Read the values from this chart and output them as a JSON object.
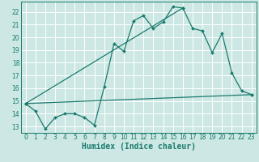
{
  "xlabel": "Humidex (Indice chaleur)",
  "bg_color": "#cde8e4",
  "grid_color": "#ffffff",
  "line_color": "#1a7a6e",
  "xlim": [
    -0.5,
    23.5
  ],
  "ylim": [
    12.5,
    22.8
  ],
  "yticks": [
    13,
    14,
    15,
    16,
    17,
    18,
    19,
    20,
    21,
    22
  ],
  "xticks": [
    0,
    1,
    2,
    3,
    4,
    5,
    6,
    7,
    8,
    9,
    10,
    11,
    12,
    13,
    14,
    15,
    16,
    17,
    18,
    19,
    20,
    21,
    22,
    23
  ],
  "series1_x": [
    0,
    1,
    2,
    3,
    4,
    5,
    6,
    7,
    8,
    9,
    10,
    11,
    12,
    13,
    14,
    15,
    16,
    17,
    18,
    19,
    20,
    21,
    22,
    23
  ],
  "series1_y": [
    14.8,
    14.2,
    12.8,
    13.7,
    14.0,
    14.0,
    13.7,
    13.1,
    16.1,
    19.5,
    18.9,
    21.3,
    21.7,
    20.7,
    21.2,
    22.4,
    22.3,
    20.7,
    20.5,
    18.8,
    20.3,
    17.2,
    15.8,
    15.5
  ],
  "series2_x": [
    0,
    23
  ],
  "series2_y": [
    14.8,
    15.5
  ],
  "series3_x": [
    0,
    16
  ],
  "series3_y": [
    14.8,
    22.3
  ],
  "tick_fontsize": 5.5,
  "xlabel_fontsize": 7.0,
  "marker_size": 2.0,
  "line_width": 0.9
}
